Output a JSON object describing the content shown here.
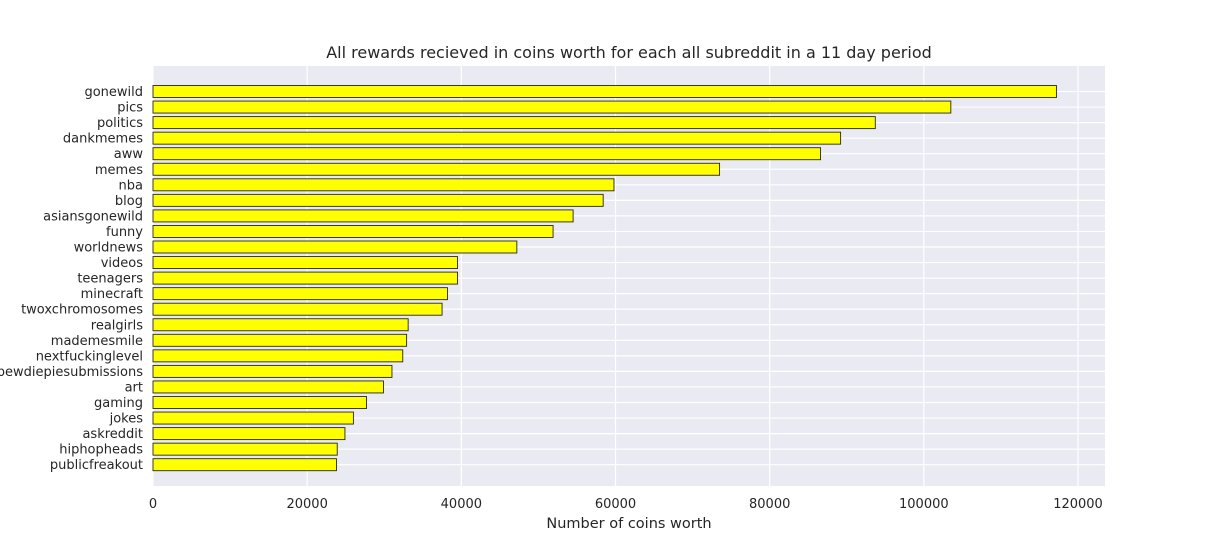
{
  "chart_data": {
    "type": "bar",
    "orientation": "horizontal",
    "title": "All rewards recieved in coins worth for each all subreddit in a 11 day period",
    "xlabel": "Number of coins worth",
    "ylabel": "",
    "categories": [
      "gonewild",
      "pics",
      "politics",
      "dankmemes",
      "aww",
      "memes",
      "nba",
      "blog",
      "asiansgonewild",
      "funny",
      "worldnews",
      "videos",
      "teenagers",
      "minecraft",
      "twoxchromosomes",
      "realgirls",
      "mademesmile",
      "nextfuckinglevel",
      "pewdiepiesubmissions",
      "art",
      "gaming",
      "jokes",
      "askreddit",
      "hiphopheads",
      "publicfreakout"
    ],
    "values": [
      117200,
      103500,
      93700,
      89200,
      86600,
      73500,
      59800,
      58400,
      54500,
      51900,
      47200,
      39500,
      39500,
      38200,
      37500,
      33100,
      32900,
      32400,
      31000,
      29900,
      27700,
      26000,
      24900,
      23900,
      23800
    ],
    "xlim": [
      0,
      123500
    ],
    "xticks": [
      0,
      20000,
      40000,
      60000,
      80000,
      100000,
      120000
    ],
    "grid": true,
    "legend": "none",
    "colors": {
      "bar_fill": "#ffff00",
      "bar_edge": "#262626",
      "plot_background": "#eaeaf2",
      "grid": "#ffffff",
      "text": "#262626"
    }
  }
}
